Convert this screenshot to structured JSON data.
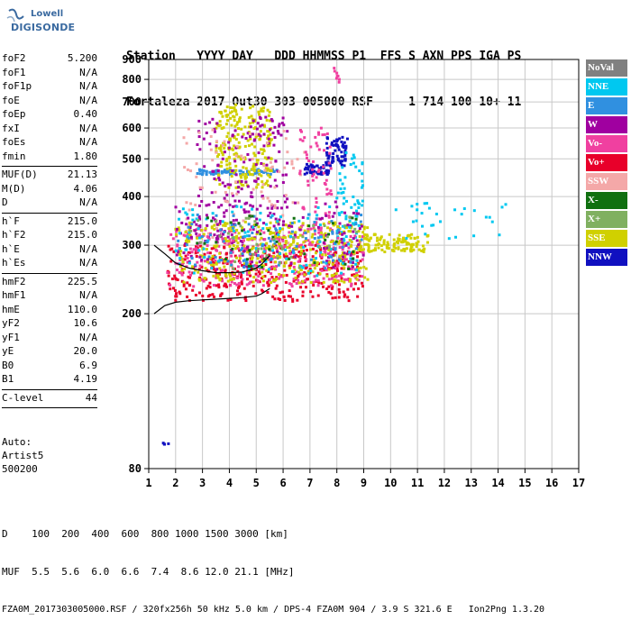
{
  "logo": {
    "line1": "Lowell",
    "line2": "DIGISONDE"
  },
  "header": {
    "line1": "Station   YYYY DAY   DDD HHMMSS P1  FFS S AXN PPS IGA PS",
    "line2": "Fortaleza 2017 Out30 303 005000 RSF     1 714 100 10+ 11"
  },
  "params_group1": [
    {
      "label": "foF2",
      "value": "5.200"
    },
    {
      "label": "foF1",
      "value": "N/A"
    },
    {
      "label": "foF1p",
      "value": "N/A"
    },
    {
      "label": "foE",
      "value": "N/A"
    },
    {
      "label": "foEp",
      "value": "0.40"
    },
    {
      "label": "fxI",
      "value": "N/A"
    },
    {
      "label": "foEs",
      "value": "N/A"
    },
    {
      "label": "fmin",
      "value": "1.80"
    }
  ],
  "params_group2": [
    {
      "label": "MUF(D)",
      "value": "21.13"
    },
    {
      "label": "M(D)",
      "value": "4.06"
    },
    {
      "label": "D",
      "value": "N/A"
    }
  ],
  "params_group3": [
    {
      "label": "h`F",
      "value": "215.0"
    },
    {
      "label": "h`F2",
      "value": "215.0"
    },
    {
      "label": "h`E",
      "value": "N/A"
    },
    {
      "label": "h`Es",
      "value": "N/A"
    }
  ],
  "params_group4": [
    {
      "label": "hmF2",
      "value": "225.5"
    },
    {
      "label": "hmF1",
      "value": "N/A"
    },
    {
      "label": "hmE",
      "value": "110.0"
    },
    {
      "label": "yF2",
      "value": "10.6"
    },
    {
      "label": "yF1",
      "value": "N/A"
    },
    {
      "label": "yE",
      "value": "20.0"
    },
    {
      "label": "B0",
      "value": "6.9"
    },
    {
      "label": "B1",
      "value": "4.19"
    }
  ],
  "params_group5": [
    {
      "label": "C-level",
      "value": "44"
    }
  ],
  "auto": {
    "line1": "Auto:",
    "line2": "Artist5",
    "line3": "500200"
  },
  "legend": [
    {
      "label": "NoVal",
      "color": "#808080"
    },
    {
      "label": "NNE",
      "color": "#00c8f0"
    },
    {
      "label": "E",
      "color": "#3090e0"
    },
    {
      "label": "W",
      "color": "#a000a0"
    },
    {
      "label": "Vo-",
      "color": "#f040a0"
    },
    {
      "label": "Vo+",
      "color": "#e8002a"
    },
    {
      "label": "SSW",
      "color": "#f4a8a8"
    },
    {
      "label": "X-",
      "color": "#107010"
    },
    {
      "label": "X+",
      "color": "#80b060"
    },
    {
      "label": "SSE",
      "color": "#d0d000"
    },
    {
      "label": "NNW",
      "color": "#1010c0"
    }
  ],
  "footer": {
    "line1": "D    100  200  400  600  800 1000 1500 3000 [km]",
    "line2": "MUF  5.5  5.6  6.0  6.6  7.4  8.6 12.0 21.1 [MHz]",
    "line3": "FZA0M_2017303005000.RSF / 320fx256h 50 kHz 5.0 km / DPS-4 FZA0M 904 / 3.9 S 321.6 E   Ion2Png 1.3.20"
  },
  "chart_data": {
    "type": "scatter",
    "title": "",
    "xlabel": "",
    "ylabel": "",
    "xlim": [
      1,
      17
    ],
    "ylim": [
      80,
      900
    ],
    "xticks": [
      1,
      2,
      3,
      4,
      5,
      6,
      7,
      8,
      9,
      10,
      11,
      12,
      13,
      14,
      15,
      16,
      17
    ],
    "yticks": [
      80,
      200,
      300,
      400,
      500,
      600,
      700,
      800,
      900
    ],
    "grid": true,
    "legend_placement": "right",
    "traces": [
      {
        "name": "profile_upper",
        "color": "#000000",
        "x": [
          1.2,
          1.6,
          2.0,
          2.5,
          3.0,
          3.5,
          4.0,
          4.5,
          5.0,
          5.2,
          5.5
        ],
        "y": [
          300,
          285,
          270,
          262,
          258,
          255,
          255,
          256,
          262,
          268,
          282
        ]
      },
      {
        "name": "profile_lower",
        "color": "#000000",
        "x": [
          1.2,
          1.6,
          2.0,
          2.5,
          3.0,
          3.5,
          4.0,
          4.5,
          5.0,
          5.2,
          5.5
        ],
        "y": [
          200,
          210,
          214,
          216,
          217,
          218,
          219,
          220,
          222,
          225,
          232
        ]
      }
    ],
    "clusters": [
      {
        "color": "#1010c0",
        "x": [
          6.8,
          7.7
        ],
        "y": [
          455,
          490
        ],
        "n": 55
      },
      {
        "color": "#1010c0",
        "x": [
          7.6,
          8.4
        ],
        "y": [
          480,
          570
        ],
        "n": 70
      },
      {
        "color": "#3090e0",
        "x": [
          2.8,
          5.8
        ],
        "y": [
          455,
          470
        ],
        "n": 70
      },
      {
        "color": "#d0d000",
        "x": [
          3.5,
          5.6
        ],
        "y": [
          420,
          690
        ],
        "n": 230
      },
      {
        "color": "#a000a0",
        "x": [
          2.8,
          6.2
        ],
        "y": [
          300,
          640
        ],
        "n": 180
      },
      {
        "color": "#f4a8a8",
        "x": [
          2.2,
          6.8
        ],
        "y": [
          300,
          600
        ],
        "n": 90
      },
      {
        "color": "#f040a0",
        "x": [
          6.6,
          7.8
        ],
        "y": [
          300,
          600
        ],
        "n": 80
      },
      {
        "color": "#00c8f0",
        "x": [
          8.0,
          9.0
        ],
        "y": [
          300,
          520
        ],
        "n": 60
      },
      {
        "color": "#e8002a",
        "x": [
          1.7,
          9.0
        ],
        "y": [
          215,
          300
        ],
        "n": 380
      },
      {
        "color": "#f040a0",
        "x": [
          1.7,
          9.0
        ],
        "y": [
          235,
          330
        ],
        "n": 300
      },
      {
        "color": "#d0d000",
        "x": [
          2.0,
          9.2
        ],
        "y": [
          240,
          345
        ],
        "n": 360
      },
      {
        "color": "#d0d000",
        "x": [
          8.8,
          11.4
        ],
        "y": [
          288,
          320
        ],
        "n": 120
      },
      {
        "color": "#a000a0",
        "x": [
          2.0,
          9.0
        ],
        "y": [
          260,
          390
        ],
        "n": 140
      },
      {
        "color": "#00c8f0",
        "x": [
          2.0,
          9.0
        ],
        "y": [
          250,
          380
        ],
        "n": 110
      },
      {
        "color": "#3090e0",
        "x": [
          2.0,
          9.0
        ],
        "y": [
          260,
          360
        ],
        "n": 90
      },
      {
        "color": "#107010",
        "x": [
          2.5,
          9.0
        ],
        "y": [
          260,
          360
        ],
        "n": 40
      },
      {
        "color": "#80b060",
        "x": [
          2.5,
          9.0
        ],
        "y": [
          260,
          360
        ],
        "n": 40
      },
      {
        "color": "#f040a0",
        "x": [
          7.9,
          8.1
        ],
        "y": [
          780,
          865
        ],
        "n": 8
      },
      {
        "color": "#00c8f0",
        "x": [
          10.0,
          14.3
        ],
        "y": [
          310,
          385
        ],
        "n": 30
      },
      {
        "color": "#1010c0",
        "x": [
          1.5,
          1.75
        ],
        "y": [
          92,
          94
        ],
        "n": 4
      }
    ]
  }
}
